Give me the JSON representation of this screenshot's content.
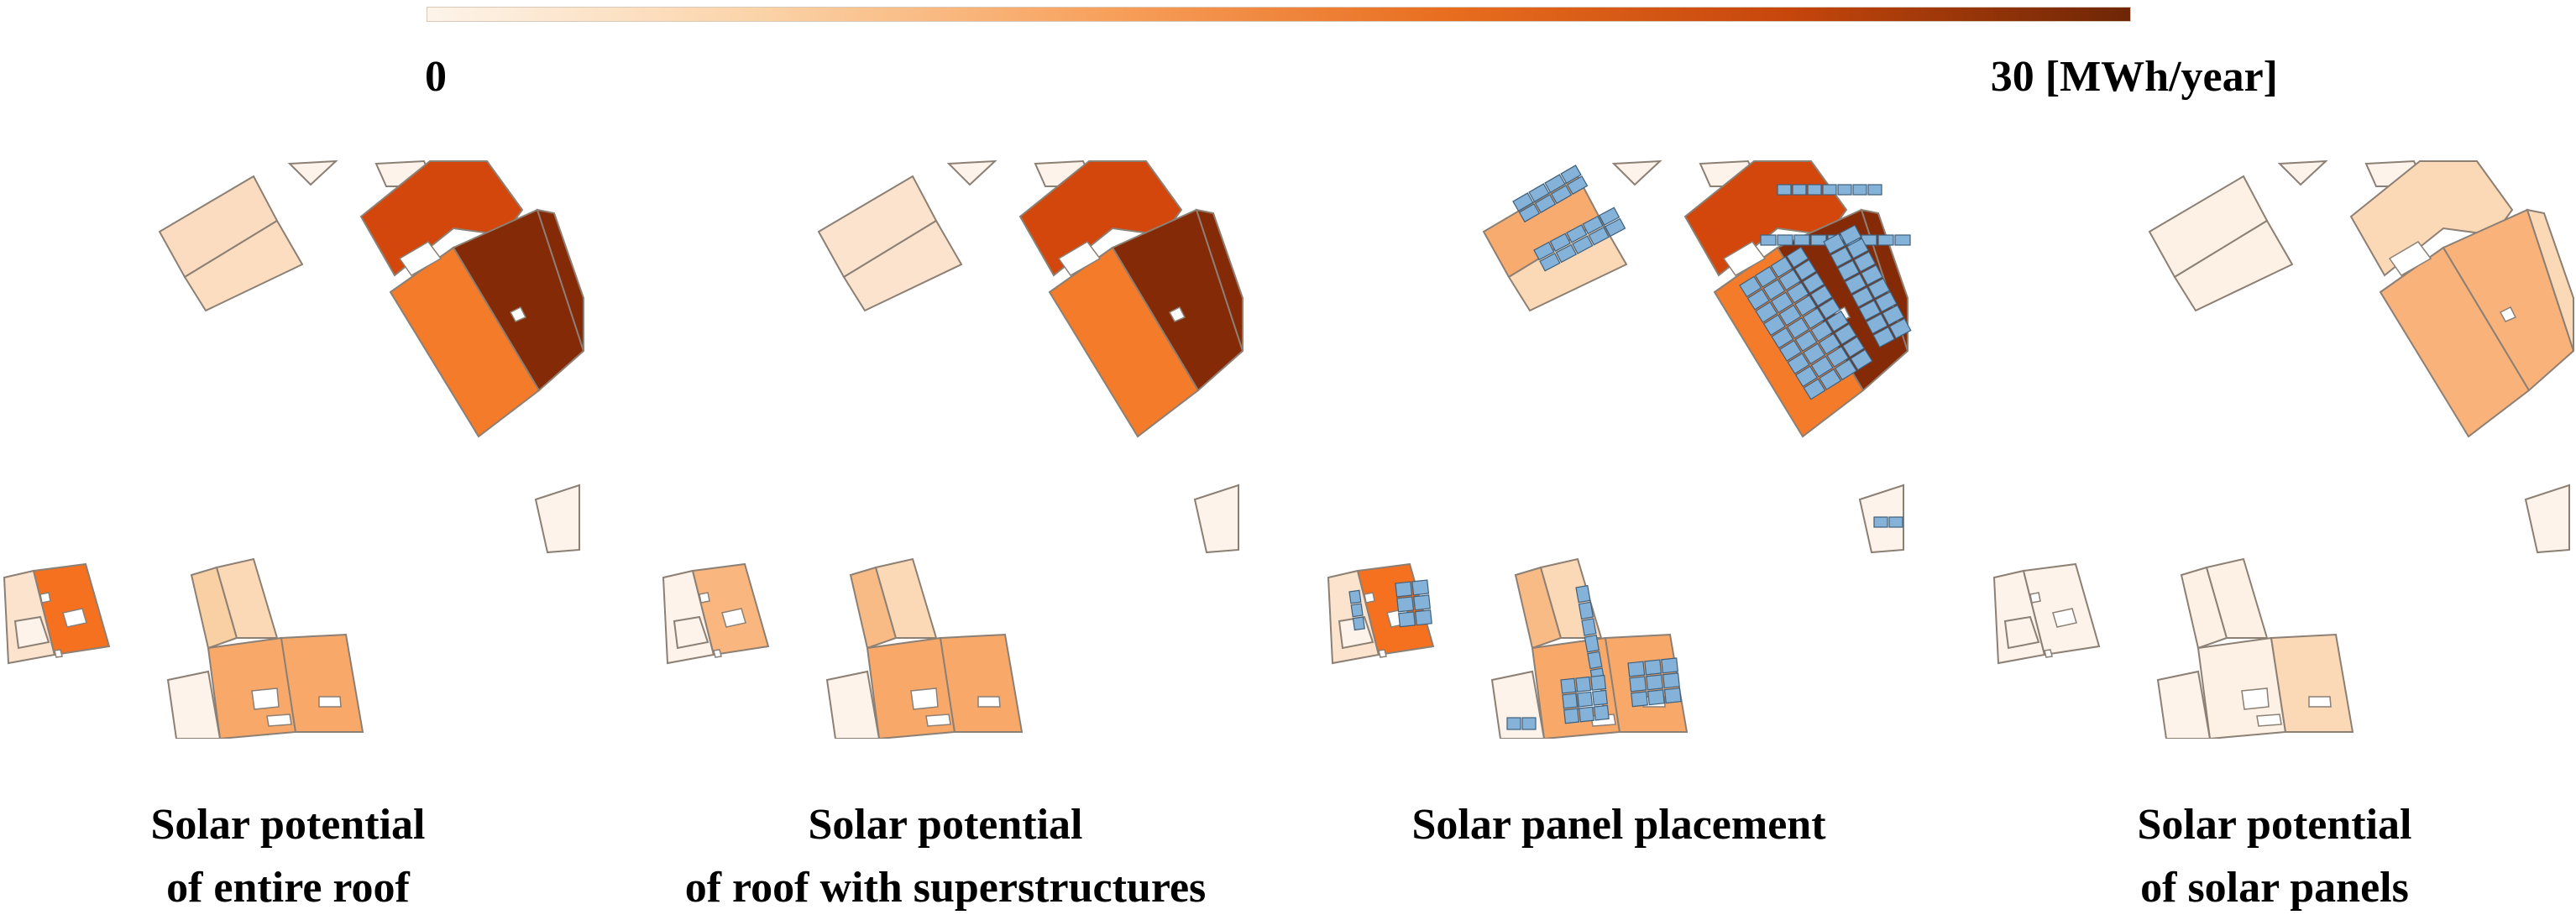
{
  "colorbar": {
    "min_label": "0",
    "max_label": "30 [MWh/year]",
    "colors": [
      "#fdf4ea",
      "#fbd2a6",
      "#f7a05c",
      "#e86d1f",
      "#c6460c",
      "#6e2606"
    ]
  },
  "panel_color": "#85b2d8",
  "panels": [
    {
      "name": "entire-roof",
      "caption_line1": "Solar potential",
      "caption_line2": "of entire roof",
      "colors": {
        "topShed": "#fbdcc0",
        "topShed2": "#fcddc0",
        "bigTop": "#d3470c",
        "bigLeft": "#f47b2a",
        "bigRight": "#852a06",
        "bigStrip": "#852a06",
        "smallTri": "#fdf3ea",
        "smallA": "#fdf3ea",
        "rightSmall": "#fdf3ea",
        "lowLeftA": "#fbe3ce",
        "lowLeftB": "#f5711f",
        "lowLeftMid": "#fdf3ea",
        "lowMainTall": "#f9cfa4",
        "lowMainTop": "#fbd8b6",
        "lowMainBase": "#f8a96a",
        "lowMainRight": "#f8a96a",
        "lowFront": "#fdf3ea"
      }
    },
    {
      "name": "roof-with-superstructures",
      "caption_line1": "Solar potential",
      "caption_line2": "of roof with superstructures",
      "colors": {
        "topShed": "#fbe3ce",
        "topShed2": "#fbe3ce",
        "bigTop": "#d3470c",
        "bigLeft": "#f47b2a",
        "bigRight": "#852a06",
        "bigStrip": "#852a06",
        "smallTri": "#fdf3ea",
        "smallA": "#fdf3ea",
        "rightSmall": "#fdf3ea",
        "lowLeftA": "#fdf3ea",
        "lowLeftB": "#f9b67e",
        "lowLeftMid": "#fdf3ea",
        "lowMainTall": "#f9bb86",
        "lowMainTop": "#fbd8b6",
        "lowMainBase": "#f8a96a",
        "lowMainRight": "#f8a96a",
        "lowFront": "#fdf3ea"
      }
    },
    {
      "name": "panel-placement",
      "caption_line1": "Solar panel placement",
      "caption_line2": "",
      "colors": {
        "topShed": "#f8ab6e",
        "topShed2": "#fbd8b6",
        "bigTop": "#d3470c",
        "bigLeft": "#f47b2a",
        "bigRight": "#852a06",
        "bigStrip": "#852a06",
        "smallTri": "#fdf3ea",
        "smallA": "#fdf3ea",
        "rightSmall": "#fdf3ea",
        "lowLeftA": "#fbe3ce",
        "lowLeftB": "#f5711f",
        "lowLeftMid": "#fdf3ea",
        "lowMainTall": "#f9bb86",
        "lowMainTop": "#fbd8b6",
        "lowMainBase": "#f8a96a",
        "lowMainRight": "#f8a96a",
        "lowFront": "#fdf3ea"
      }
    },
    {
      "name": "solar-panels-potential",
      "caption_line1": "Solar potential",
      "caption_line2": "of solar panels",
      "colors": {
        "topShed": "#fdf1e6",
        "topShed2": "#fdf1e6",
        "bigTop": "#fbd8b6",
        "bigLeft": "#f9b27a",
        "bigRight": "#f9b27a",
        "bigStrip": "#fbd8b6",
        "smallTri": "#fdf3ea",
        "smallA": "#fdf3ea",
        "rightSmall": "#fdf3ea",
        "lowLeftA": "#fdf3ea",
        "lowLeftB": "#fdf3ea",
        "lowLeftMid": "#fdf3ea",
        "lowMainTall": "#fdf1e6",
        "lowMainTop": "#fdf1e6",
        "lowMainBase": "#fdf1e6",
        "lowMainRight": "#fbd8b6",
        "lowFront": "#fdf3ea"
      }
    }
  ]
}
